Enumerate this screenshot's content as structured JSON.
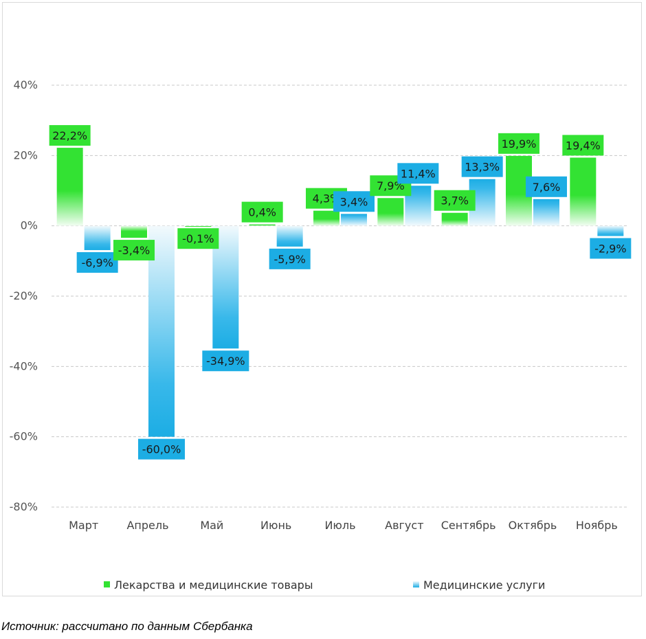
{
  "chart_data": {
    "type": "bar",
    "categories": [
      "Март",
      "Апрель",
      "Май",
      "Июнь",
      "Июль",
      "Август",
      "Сентябрь",
      "Октябрь",
      "Ноябрь"
    ],
    "series": [
      {
        "name": "Лекарства и медицинские товары",
        "values": [
          22.2,
          -3.4,
          -0.1,
          0.4,
          4.3,
          7.9,
          3.7,
          19.9,
          19.4
        ],
        "labels": [
          "22,2%",
          "-3,4%",
          "-0,1%",
          "0,4%",
          "4,3%",
          "7,9%",
          "3,7%",
          "19,9%",
          "19,4%"
        ],
        "color": "#33e233"
      },
      {
        "name": "Медицинские услуги",
        "values": [
          -6.9,
          -60.0,
          -34.9,
          -5.9,
          3.4,
          11.4,
          13.3,
          7.6,
          -2.9
        ],
        "labels": [
          "-6,9%",
          "-60,0%",
          "-34,9%",
          "-5,9%",
          "3,4%",
          "11,4%",
          "13,3%",
          "7,6%",
          "-2,9%"
        ],
        "color": "#1cade4"
      }
    ],
    "yticks": [
      40,
      20,
      0,
      -20,
      -40,
      -60,
      -80
    ],
    "ytick_labels": [
      "40%",
      "20%",
      "0%",
      "-20%",
      "-40%",
      "-60%",
      "-80%"
    ],
    "ylim": [
      -80,
      40
    ],
    "grid": true,
    "legend_position": "bottom"
  },
  "source": "Источник: рассчитано по данным Сбербанка"
}
